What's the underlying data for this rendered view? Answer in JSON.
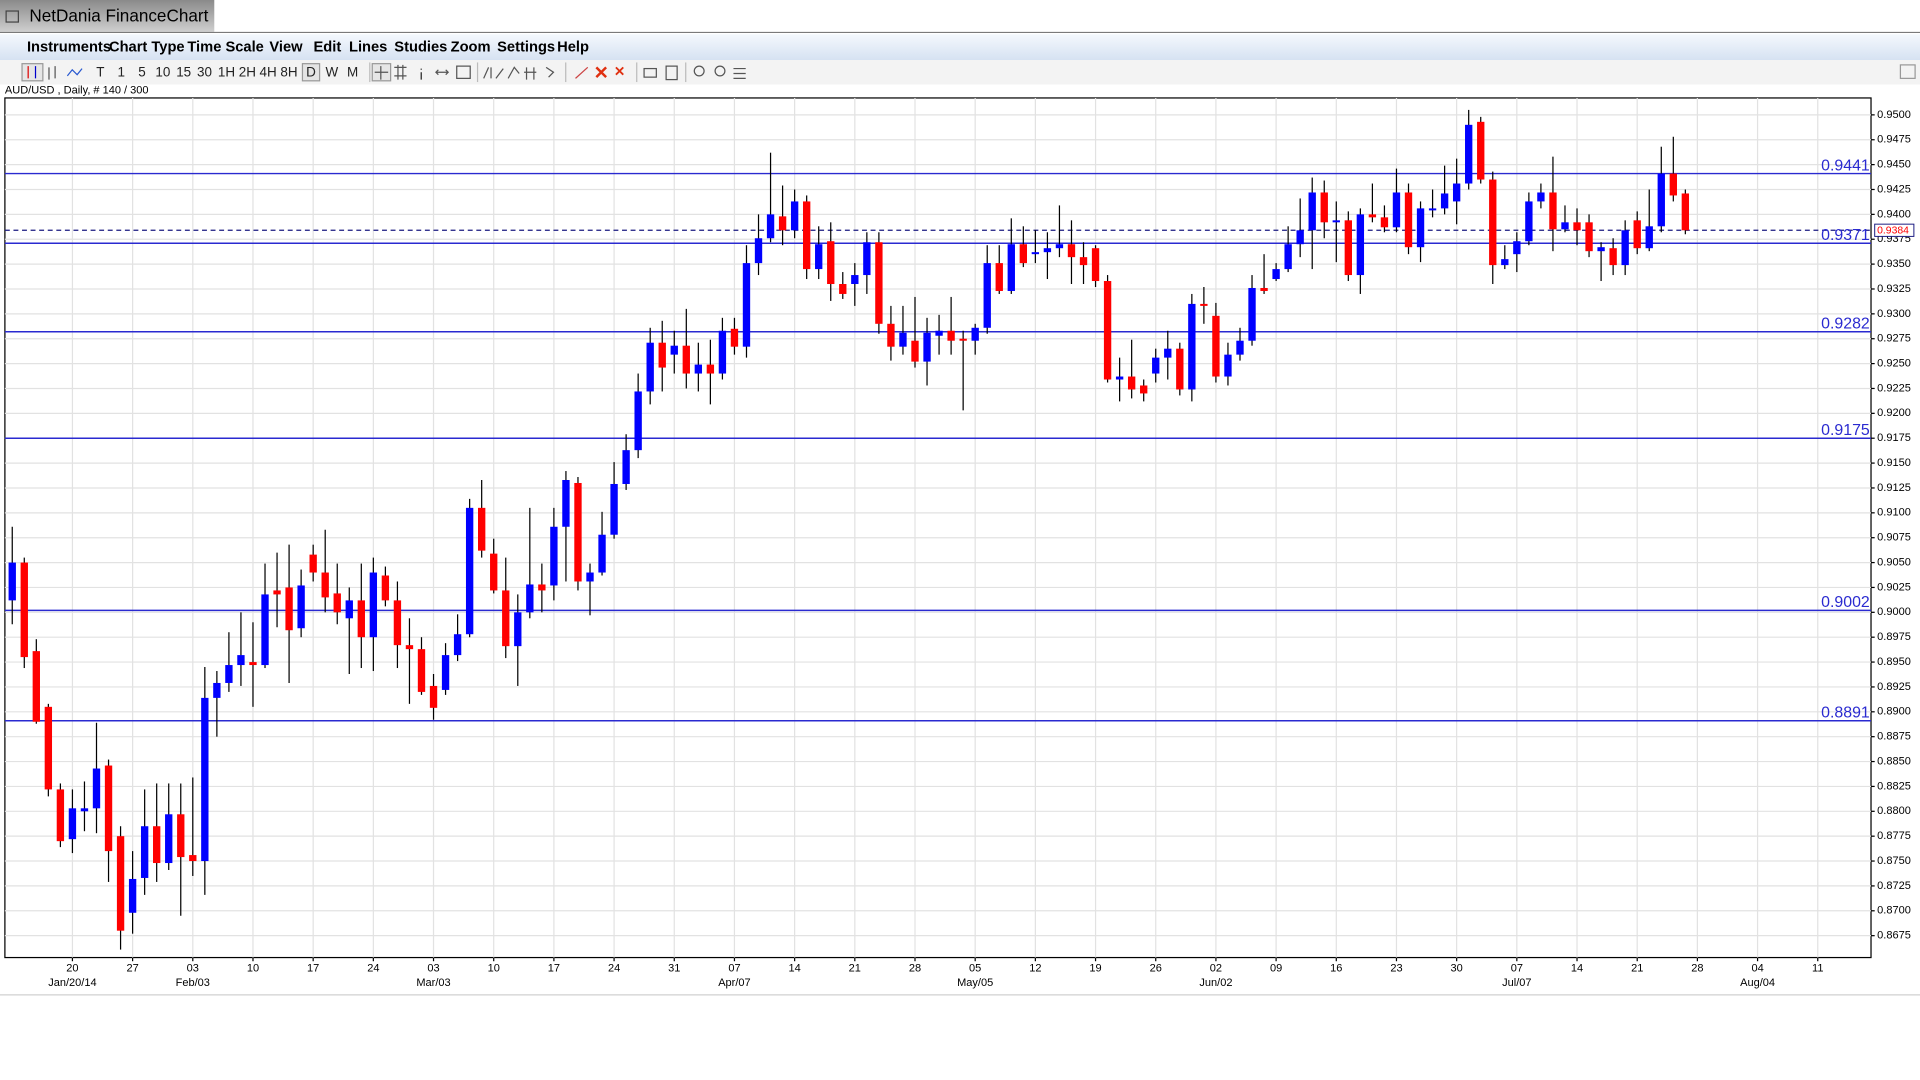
{
  "app": {
    "title": "NetDania FinanceChart",
    "menu": [
      "Instruments",
      "Chart Type",
      "Time Scale",
      "View",
      "Edit",
      "Lines",
      "Studies",
      "Zoom",
      "Settings",
      "Help"
    ],
    "toolbar": [
      "T",
      "1",
      "5",
      "10",
      "15",
      "30",
      "1H",
      "2H",
      "4H",
      "8H",
      "D",
      "W",
      "M"
    ]
  },
  "chart_data": {
    "type": "candlestick",
    "instrument_label": "AUD/USD , Daily, # 140 / 300",
    "up_color": "#0000ff",
    "down_color": "#ff0000",
    "hline_color": "#2a2ad0",
    "grid": true,
    "ylim": [
      0.8653,
      0.9517
    ],
    "yticks": [
      0.8675,
      {
        "value": 0.87,
        "label": "0.8700"
      },
      0.8725,
      {
        "value": 0.875,
        "label": "0.8750"
      },
      0.8775,
      {
        "value": 0.88,
        "label": "0.8800"
      },
      0.8825,
      {
        "value": 0.885,
        "label": "0.8850"
      },
      0.8875,
      {
        "value": 0.89,
        "label": "0.8900"
      },
      0.8925,
      {
        "value": 0.895,
        "label": "0.8950"
      },
      0.8975,
      {
        "value": 0.9,
        "label": "0.9000"
      },
      0.9025,
      {
        "value": 0.905,
        "label": "0.9050"
      },
      0.9075,
      {
        "value": 0.91,
        "label": "0.9100"
      },
      0.9125,
      {
        "value": 0.915,
        "label": "0.9150"
      },
      0.9175,
      {
        "value": 0.92,
        "label": "0.9200"
      },
      0.9225,
      {
        "value": 0.925,
        "label": "0.9250"
      },
      0.9275,
      {
        "value": 0.93,
        "label": "0.9300"
      },
      0.9325,
      {
        "value": 0.935,
        "label": "0.9350"
      },
      0.9375,
      {
        "value": 0.94,
        "label": "0.9400"
      },
      0.9425,
      {
        "value": 0.945,
        "label": "0.9450"
      },
      0.9475,
      {
        "value": 0.95,
        "label": "0.9500"
      }
    ],
    "xticks": [
      "20",
      "27",
      "03",
      "10",
      "17",
      "24",
      "03",
      "10",
      "17",
      "24",
      "31",
      "07",
      "14",
      "21",
      "28",
      "05",
      "12",
      "19",
      "26",
      "02",
      "09",
      "16",
      "23",
      "30",
      "07",
      "14",
      "21",
      "28",
      "04",
      "11"
    ],
    "xticks_month": [
      "Jan/20/14",
      null,
      "Feb/03",
      null,
      null,
      null,
      "Mar/03",
      null,
      null,
      null,
      null,
      "Apr/07",
      null,
      null,
      null,
      "May/05",
      null,
      null,
      null,
      "Jun/02",
      null,
      null,
      null,
      null,
      "Jul/07",
      null,
      null,
      null,
      "Aug/04",
      null
    ],
    "hlines": [
      0.9441,
      0.9371,
      0.9282,
      0.9175,
      0.9002,
      0.8891
    ],
    "last_price": 0.9384,
    "ohlc": [
      [
        0.9012,
        0.9086,
        0.8988,
        0.905
      ],
      [
        0.905,
        0.9055,
        0.8944,
        0.8955
      ],
      [
        0.8961,
        0.8973,
        0.8888,
        0.889
      ],
      [
        0.8905,
        0.8908,
        0.8815,
        0.8822
      ],
      [
        0.8822,
        0.8828,
        0.8764,
        0.877
      ],
      [
        0.8772,
        0.8822,
        0.8758,
        0.8803
      ],
      [
        0.88,
        0.883,
        0.878,
        0.8803
      ],
      [
        0.8803,
        0.8889,
        0.8778,
        0.8843
      ],
      [
        0.8846,
        0.8852,
        0.8729,
        0.876
      ],
      [
        0.8775,
        0.8785,
        0.8661,
        0.868
      ],
      [
        0.8698,
        0.876,
        0.8677,
        0.8732
      ],
      [
        0.8733,
        0.8822,
        0.8716,
        0.8785
      ],
      [
        0.8785,
        0.8828,
        0.8729,
        0.8748
      ],
      [
        0.8748,
        0.8828,
        0.8741,
        0.8797
      ],
      [
        0.8797,
        0.8828,
        0.8695,
        0.8754
      ],
      [
        0.8756,
        0.8834,
        0.8735,
        0.875
      ],
      [
        0.875,
        0.8945,
        0.8716,
        0.8914
      ],
      [
        0.8914,
        0.8941,
        0.8875,
        0.8929
      ],
      [
        0.8929,
        0.898,
        0.892,
        0.8947
      ],
      [
        0.8947,
        0.9,
        0.8926,
        0.8957
      ],
      [
        0.895,
        0.899,
        0.8905,
        0.8947
      ],
      [
        0.8947,
        0.9049,
        0.8944,
        0.9018
      ],
      [
        0.9022,
        0.906,
        0.8985,
        0.9018
      ],
      [
        0.9025,
        0.9068,
        0.8929,
        0.8982
      ],
      [
        0.8984,
        0.9043,
        0.8975,
        0.9027
      ],
      [
        0.9058,
        0.9068,
        0.9031,
        0.904
      ],
      [
        0.904,
        0.9083,
        0.9,
        0.9015
      ],
      [
        0.9019,
        0.9049,
        0.8988,
        0.9
      ],
      [
        0.8994,
        0.9025,
        0.8938,
        0.9012
      ],
      [
        0.9012,
        0.9049,
        0.8944,
        0.8975
      ],
      [
        0.8975,
        0.9055,
        0.8941,
        0.904
      ],
      [
        0.9037,
        0.9046,
        0.9006,
        0.9012
      ],
      [
        0.9012,
        0.9031,
        0.8944,
        0.8967
      ],
      [
        0.8967,
        0.8994,
        0.8908,
        0.8963
      ],
      [
        0.8963,
        0.8975,
        0.8917,
        0.892
      ],
      [
        0.8926,
        0.8938,
        0.8892,
        0.8904
      ],
      [
        0.8922,
        0.8969,
        0.8917,
        0.8957
      ],
      [
        0.8957,
        0.8998,
        0.8951,
        0.8978
      ],
      [
        0.8978,
        0.9114,
        0.8975,
        0.9105
      ],
      [
        0.9105,
        0.9133,
        0.9055,
        0.9062
      ],
      [
        0.9059,
        0.9074,
        0.9019,
        0.9022
      ],
      [
        0.9022,
        0.9055,
        0.8954,
        0.8966
      ],
      [
        0.8966,
        0.9018,
        0.8926,
        0.9
      ],
      [
        0.9,
        0.9105,
        0.8994,
        0.9028
      ],
      [
        0.9028,
        0.9049,
        0.9,
        0.9022
      ],
      [
        0.9027,
        0.9105,
        0.9012,
        0.9086
      ],
      [
        0.9086,
        0.9142,
        0.9031,
        0.9133
      ],
      [
        0.913,
        0.9136,
        0.9022,
        0.9031
      ],
      [
        0.9031,
        0.9049,
        0.8997,
        0.904
      ],
      [
        0.904,
        0.9101,
        0.9037,
        0.9078
      ],
      [
        0.9078,
        0.9151,
        0.9074,
        0.9129
      ],
      [
        0.9129,
        0.9179,
        0.9123,
        0.9163
      ],
      [
        0.9163,
        0.924,
        0.9155,
        0.9222
      ],
      [
        0.9222,
        0.9286,
        0.9209,
        0.9271
      ],
      [
        0.9271,
        0.9293,
        0.9222,
        0.9246
      ],
      [
        0.9259,
        0.9283,
        0.924,
        0.9268
      ],
      [
        0.9268,
        0.9305,
        0.9225,
        0.924
      ],
      [
        0.924,
        0.9271,
        0.9222,
        0.9249
      ],
      [
        0.9249,
        0.9274,
        0.9209,
        0.924
      ],
      [
        0.924,
        0.9296,
        0.9234,
        0.9283
      ],
      [
        0.9285,
        0.9296,
        0.9259,
        0.9267
      ],
      [
        0.9267,
        0.9369,
        0.9256,
        0.9351
      ],
      [
        0.9351,
        0.94,
        0.9339,
        0.9376
      ],
      [
        0.9376,
        0.9462,
        0.9372,
        0.94
      ],
      [
        0.9398,
        0.9429,
        0.9369,
        0.9384
      ],
      [
        0.9384,
        0.9425,
        0.9376,
        0.9413
      ],
      [
        0.9413,
        0.9419,
        0.9335,
        0.9345
      ],
      [
        0.9345,
        0.9388,
        0.9335,
        0.937
      ],
      [
        0.9373,
        0.9392,
        0.9313,
        0.933
      ],
      [
        0.933,
        0.9342,
        0.9315,
        0.932
      ],
      [
        0.933,
        0.9351,
        0.9308,
        0.9339
      ],
      [
        0.9339,
        0.9382,
        0.932,
        0.9372
      ],
      [
        0.9372,
        0.9382,
        0.928,
        0.929
      ],
      [
        0.929,
        0.9308,
        0.9253,
        0.9267
      ],
      [
        0.9267,
        0.9308,
        0.9259,
        0.9281
      ],
      [
        0.9273,
        0.9317,
        0.9246,
        0.9252
      ],
      [
        0.9252,
        0.9296,
        0.9228,
        0.9281
      ],
      [
        0.9278,
        0.9299,
        0.9259,
        0.9283
      ],
      [
        0.9283,
        0.9317,
        0.9259,
        0.9273
      ],
      [
        0.9275,
        0.9283,
        0.9203,
        0.9273
      ],
      [
        0.9273,
        0.929,
        0.9259,
        0.9286
      ],
      [
        0.9286,
        0.9369,
        0.928,
        0.9351
      ],
      [
        0.9351,
        0.9369,
        0.932,
        0.9323
      ],
      [
        0.9323,
        0.9396,
        0.932,
        0.937
      ],
      [
        0.937,
        0.9388,
        0.9347,
        0.9351
      ],
      [
        0.936,
        0.9384,
        0.9351,
        0.9362
      ],
      [
        0.9362,
        0.9382,
        0.9335,
        0.9366
      ],
      [
        0.9366,
        0.9409,
        0.9357,
        0.937
      ],
      [
        0.937,
        0.9394,
        0.933,
        0.9357
      ],
      [
        0.9357,
        0.9372,
        0.933,
        0.9349
      ],
      [
        0.9366,
        0.9369,
        0.9327,
        0.9333
      ],
      [
        0.9333,
        0.9339,
        0.9231,
        0.9234
      ],
      [
        0.9234,
        0.9256,
        0.9212,
        0.9237
      ],
      [
        0.9237,
        0.9274,
        0.9215,
        0.9224
      ],
      [
        0.9228,
        0.9234,
        0.9212,
        0.922
      ],
      [
        0.924,
        0.9265,
        0.9231,
        0.9256
      ],
      [
        0.9256,
        0.9283,
        0.9234,
        0.9265
      ],
      [
        0.9265,
        0.9271,
        0.9218,
        0.9224
      ],
      [
        0.9224,
        0.932,
        0.9212,
        0.931
      ],
      [
        0.931,
        0.9327,
        0.929,
        0.9308
      ],
      [
        0.9298,
        0.9311,
        0.9231,
        0.9237
      ],
      [
        0.9237,
        0.9271,
        0.9228,
        0.9259
      ],
      [
        0.9259,
        0.9286,
        0.9253,
        0.9273
      ],
      [
        0.9273,
        0.9339,
        0.9268,
        0.9326
      ],
      [
        0.9326,
        0.936,
        0.932,
        0.9323
      ],
      [
        0.9335,
        0.9351,
        0.9333,
        0.9345
      ],
      [
        0.9345,
        0.9388,
        0.9342,
        0.937
      ],
      [
        0.937,
        0.9416,
        0.9357,
        0.9384
      ],
      [
        0.9384,
        0.9437,
        0.9345,
        0.9422
      ],
      [
        0.9422,
        0.9434,
        0.9376,
        0.9392
      ],
      [
        0.9392,
        0.9413,
        0.9352,
        0.9394
      ],
      [
        0.9394,
        0.9403,
        0.9333,
        0.9339
      ],
      [
        0.9339,
        0.9406,
        0.932,
        0.94
      ],
      [
        0.94,
        0.9431,
        0.9392,
        0.9397
      ],
      [
        0.9397,
        0.9409,
        0.9382,
        0.9387
      ],
      [
        0.9387,
        0.9446,
        0.9382,
        0.9422
      ],
      [
        0.9422,
        0.9431,
        0.936,
        0.9367
      ],
      [
        0.9367,
        0.9413,
        0.9352,
        0.9406
      ],
      [
        0.9404,
        0.9425,
        0.9397,
        0.9406
      ],
      [
        0.9406,
        0.9449,
        0.94,
        0.9421
      ],
      [
        0.9413,
        0.9456,
        0.939,
        0.9431
      ],
      [
        0.9431,
        0.9505,
        0.9425,
        0.949
      ],
      [
        0.9493,
        0.9498,
        0.9431,
        0.9435
      ],
      [
        0.9435,
        0.9443,
        0.933,
        0.9349
      ],
      [
        0.9349,
        0.9369,
        0.9345,
        0.9355
      ],
      [
        0.936,
        0.9382,
        0.9342,
        0.9373
      ],
      [
        0.9373,
        0.9422,
        0.9369,
        0.9413
      ],
      [
        0.9413,
        0.9431,
        0.9406,
        0.9422
      ],
      [
        0.9422,
        0.9458,
        0.9363,
        0.9385
      ],
      [
        0.9385,
        0.9409,
        0.9382,
        0.9392
      ],
      [
        0.9392,
        0.9406,
        0.9369,
        0.9384
      ],
      [
        0.9392,
        0.94,
        0.9357,
        0.9363
      ],
      [
        0.9363,
        0.9372,
        0.9333,
        0.9367
      ],
      [
        0.9366,
        0.9376,
        0.9339,
        0.9349
      ],
      [
        0.9349,
        0.9394,
        0.9339,
        0.9384
      ],
      [
        0.9394,
        0.9403,
        0.936,
        0.9366
      ],
      [
        0.9366,
        0.9425,
        0.9363,
        0.9388
      ],
      [
        0.9388,
        0.9468,
        0.9382,
        0.9441
      ],
      [
        0.9441,
        0.9478,
        0.9413,
        0.9419
      ],
      [
        0.9421,
        0.9425,
        0.938,
        0.9384
      ]
    ]
  }
}
